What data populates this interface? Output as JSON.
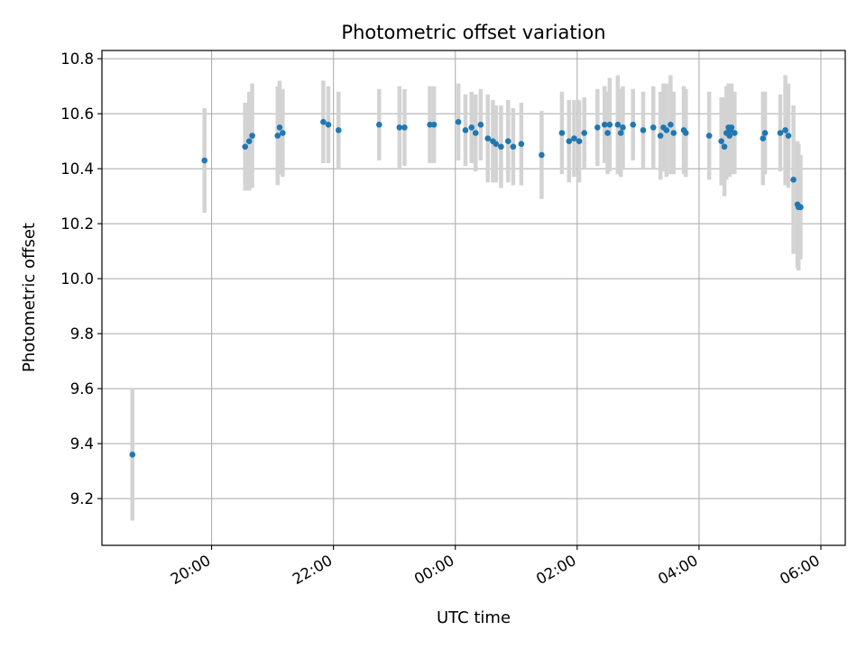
{
  "chart_data": {
    "type": "scatter",
    "title": "Photometric offset variation",
    "xlabel": "UTC time",
    "ylabel": "Photometric offset",
    "grid": true,
    "xlim": [
      "18:12",
      "06:24"
    ],
    "ylim": [
      9.03,
      10.83
    ],
    "xticks": [
      "20:00",
      "22:00",
      "00:00",
      "02:00",
      "04:00",
      "06:00"
    ],
    "yticks": [
      "9.2",
      "9.4",
      "9.6",
      "9.8",
      "10.0",
      "10.2",
      "10.4",
      "10.6",
      "10.8"
    ],
    "colors": {
      "point": "#1f77b4",
      "errorbar": "#d3d3d3",
      "grid": "#b0b0b0"
    },
    "series": [
      {
        "x": [
          "18:42",
          "19:53",
          "20:33",
          "20:37",
          "20:40",
          "21:05",
          "21:07",
          "21:10",
          "21:50",
          "21:55",
          "22:05",
          "22:45",
          "23:05",
          "23:10",
          "23:35",
          "23:39",
          "00:03",
          "00:10",
          "00:16",
          "00:20",
          "00:25",
          "00:32",
          "00:37",
          "00:40",
          "00:45",
          "00:52",
          "00:57",
          "01:05",
          "01:25",
          "01:45",
          "01:52",
          "01:57",
          "02:02",
          "02:07",
          "02:20",
          "02:27",
          "02:30",
          "02:32",
          "02:40",
          "02:43",
          "02:45",
          "02:55",
          "03:05",
          "03:15",
          "03:22",
          "03:25",
          "03:28",
          "03:32",
          "03:35",
          "03:45",
          "03:47",
          "04:10",
          "04:22",
          "04:25",
          "04:27",
          "04:29",
          "04:30",
          "04:31",
          "04:32",
          "04:35",
          "05:03",
          "05:05",
          "05:20",
          "05:25",
          "05:28",
          "05:33",
          "05:37",
          "05:38",
          "05:40"
        ],
        "y": [
          9.36,
          10.43,
          10.48,
          10.5,
          10.52,
          10.52,
          10.55,
          10.53,
          10.57,
          10.56,
          10.54,
          10.56,
          10.55,
          10.55,
          10.56,
          10.56,
          10.57,
          10.54,
          10.55,
          10.53,
          10.56,
          10.51,
          10.5,
          10.49,
          10.48,
          10.5,
          10.48,
          10.49,
          10.45,
          10.53,
          10.5,
          10.51,
          10.5,
          10.53,
          10.55,
          10.56,
          10.53,
          10.56,
          10.56,
          10.53,
          10.55,
          10.56,
          10.54,
          10.55,
          10.52,
          10.55,
          10.54,
          10.56,
          10.53,
          10.54,
          10.53,
          10.52,
          10.5,
          10.48,
          10.53,
          10.55,
          10.52,
          10.54,
          10.55,
          10.53,
          10.51,
          10.53,
          10.53,
          10.54,
          10.52,
          10.36,
          10.27,
          10.26,
          10.26
        ],
        "yerr": [
          0.24,
          0.19,
          0.16,
          0.18,
          0.19,
          0.18,
          0.17,
          0.16,
          0.15,
          0.14,
          0.14,
          0.13,
          0.15,
          0.14,
          0.14,
          0.14,
          0.14,
          0.13,
          0.13,
          0.14,
          0.13,
          0.16,
          0.15,
          0.14,
          0.15,
          0.15,
          0.14,
          0.15,
          0.16,
          0.15,
          0.15,
          0.14,
          0.15,
          0.13,
          0.14,
          0.14,
          0.15,
          0.17,
          0.18,
          0.16,
          0.15,
          0.13,
          0.14,
          0.15,
          0.16,
          0.16,
          0.17,
          0.18,
          0.15,
          0.16,
          0.16,
          0.16,
          0.16,
          0.18,
          0.17,
          0.16,
          0.15,
          0.16,
          0.16,
          0.15,
          0.17,
          0.15,
          0.14,
          0.2,
          0.19,
          0.27,
          0.23,
          0.23,
          0.19
        ]
      }
    ]
  }
}
